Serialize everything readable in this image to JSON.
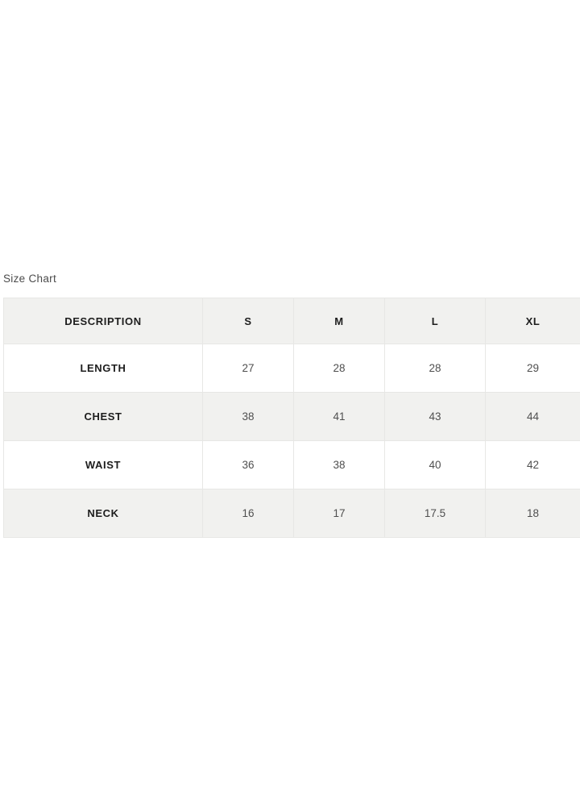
{
  "section": {
    "label": "Size Chart"
  },
  "size_chart": {
    "columns": [
      "DESCRIPTION",
      "S",
      "M",
      "L",
      "XL"
    ],
    "rows": [
      {
        "label": "LENGTH",
        "values": [
          "27",
          "28",
          "28",
          "29"
        ]
      },
      {
        "label": "CHEST",
        "values": [
          "38",
          "41",
          "43",
          "44"
        ]
      },
      {
        "label": "WAIST",
        "values": [
          "36",
          "38",
          "40",
          "42"
        ]
      },
      {
        "label": "NECK",
        "values": [
          "16",
          "17",
          "17.5",
          "18"
        ]
      }
    ]
  },
  "chart_data": {
    "type": "table",
    "title": "Size Chart",
    "columns": [
      "DESCRIPTION",
      "S",
      "M",
      "L",
      "XL"
    ],
    "rows": [
      [
        "LENGTH",
        27,
        28,
        28,
        29
      ],
      [
        "CHEST",
        38,
        41,
        43,
        44
      ],
      [
        "WAIST",
        36,
        38,
        40,
        42
      ],
      [
        "NECK",
        16,
        17,
        17.5,
        18
      ]
    ]
  },
  "colors": {
    "page_background": "#ffffff",
    "header_row_background": "#f1f1ef",
    "shaded_row_background": "#f1f1ef",
    "plain_row_background": "#ffffff",
    "cell_border": "#e7e7e5",
    "label_text": "#1d1d1d",
    "value_text": "#4f4f4f",
    "section_label_text": "#4b4b4b"
  }
}
